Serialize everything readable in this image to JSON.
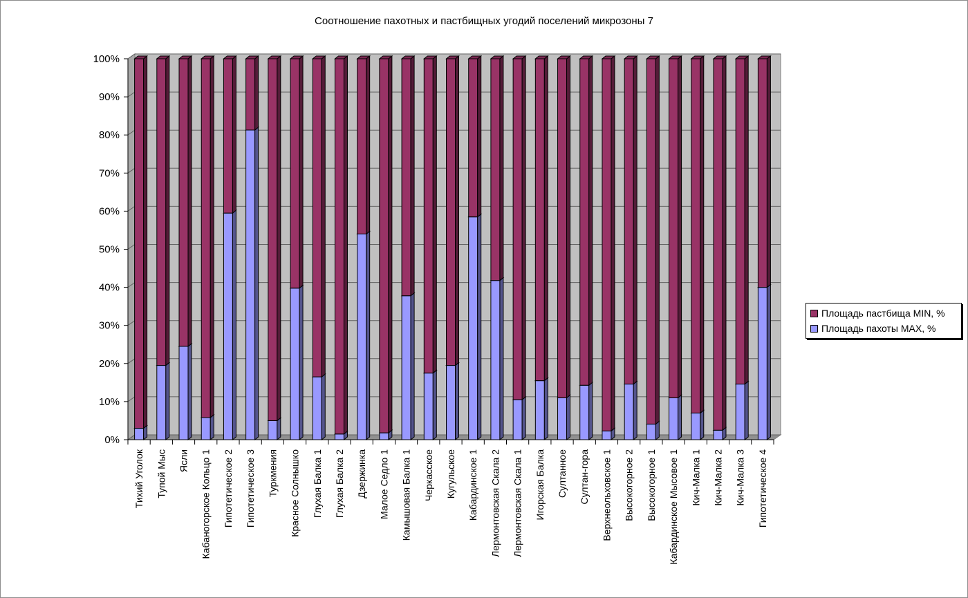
{
  "chart_data": {
    "type": "bar",
    "stacked": "percent",
    "three_d": true,
    "title": "Соотношение пахотных и пастбищных угодий поселений микрозоны 7",
    "xlabel": "",
    "ylabel": "",
    "ylim": [
      0,
      100
    ],
    "y_ticks": [
      "0%",
      "10%",
      "20%",
      "30%",
      "40%",
      "50%",
      "60%",
      "70%",
      "80%",
      "90%",
      "100%"
    ],
    "grid": true,
    "legend_position": "right",
    "categories": [
      "Тихий Уголок",
      "Тупой Мыс",
      "Ясли",
      "Кабаногорское Кольцо 1",
      "Гипотетическое 2",
      "Гипотетическое 3",
      "Туркмения",
      "Красное Солнышко",
      "Глухая Балка 1",
      "Глухая Балка 2",
      "Дзержинка",
      "Малое Седло 1",
      "Камышовая Балка 1",
      "Черкасское",
      "Кугульское",
      "Кабардинское 1",
      "Лермонтовская Скала 2",
      "Лермонтовская Скала 1",
      "Игорская Балка",
      "Султанное",
      "Султан-гора",
      "Верхнеольховское 1",
      "Высокогорное 2",
      "Высокогорное 1",
      "Кабардинское Мысовое 1",
      "Кич-Малка 1",
      "Кич-Малка 2",
      "Кич-Малка 3",
      "Гипотетическое 4"
    ],
    "series": [
      {
        "name": "Площадь пахоты MAX, %",
        "color": "#9999ff",
        "values": [
          3,
          19.5,
          24.5,
          5.8,
          59.5,
          81.3,
          5,
          39.8,
          16.5,
          1.5,
          54,
          1.8,
          37.8,
          17.5,
          19.5,
          58.5,
          41.8,
          10.5,
          15.5,
          11,
          14.3,
          2.3,
          14.6,
          4.1,
          11,
          7,
          2.5,
          14.6,
          40
        ]
      },
      {
        "name": "Площадь пастбища MIN, %",
        "color": "#993366",
        "values": [
          97,
          80.5,
          75.5,
          94.2,
          40.5,
          18.7,
          95,
          60.2,
          83.5,
          98.5,
          46,
          98.2,
          62.2,
          82.5,
          80.5,
          41.5,
          58.2,
          89.5,
          84.5,
          89,
          85.7,
          97.7,
          85.4,
          95.9,
          89,
          93,
          97.5,
          85.4,
          60
        ]
      }
    ]
  },
  "legend": {
    "items": [
      {
        "label": "Площадь пастбища MIN, %",
        "color": "#993366"
      },
      {
        "label": "Площадь пахоты MAX, %",
        "color": "#9999ff"
      }
    ]
  }
}
